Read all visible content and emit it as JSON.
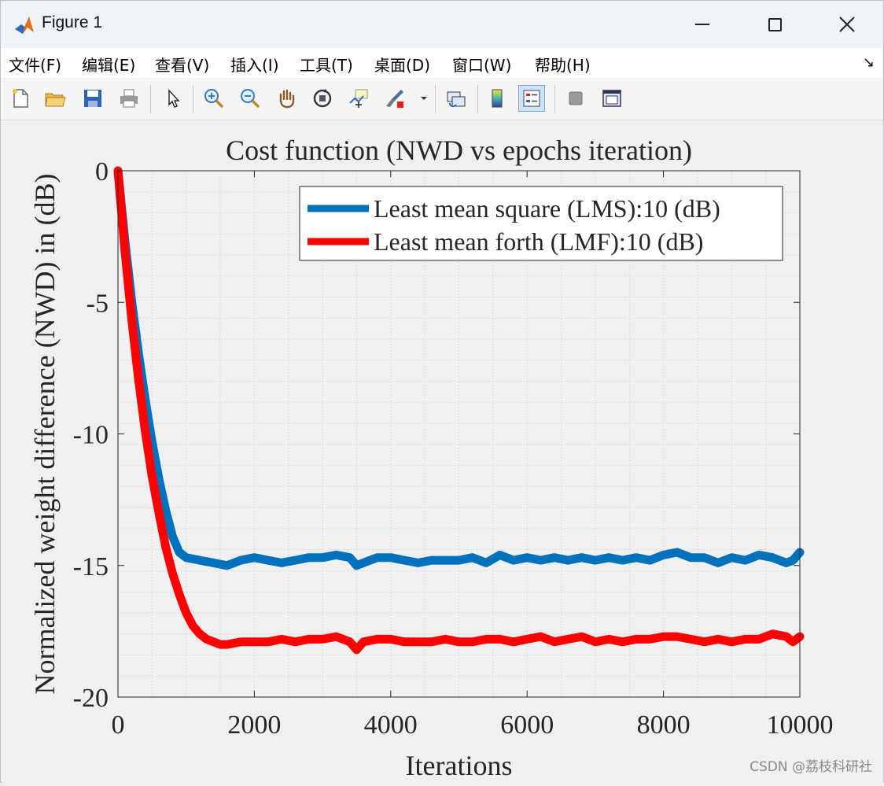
{
  "window": {
    "title": "Figure 1",
    "controls": {
      "minimize": "—",
      "maximize": "☐",
      "close": "✕"
    }
  },
  "menubar": {
    "items": [
      "文件(F)",
      "编辑(E)",
      "查看(V)",
      "插入(I)",
      "工具(T)",
      "桌面(D)",
      "窗口(W)",
      "帮助(H)"
    ],
    "expand_glyph": "↘"
  },
  "toolbar": {
    "icons": [
      "new-figure-icon",
      "open-file-icon",
      "save-icon",
      "print-icon",
      "pointer-icon",
      "zoom-in-icon",
      "zoom-out-icon",
      "pan-icon",
      "rotate-3d-icon",
      "data-cursor-icon",
      "brush-icon",
      "brush-dropdown-icon",
      "link-plot-icon",
      "colorbar-icon",
      "legend-icon",
      "hide-plot-tools-icon",
      "show-plot-tools-icon"
    ]
  },
  "watermark": "CSDN @荔枝科研社",
  "colors": {
    "lms": "#0072bd",
    "lmf": "#ff0000"
  },
  "chart_data": {
    "type": "line",
    "title": "Cost function (NWD vs epochs iteration)",
    "xlabel": "Iterations",
    "ylabel": "Normalized weight difference (NWD) in (dB)",
    "xlim": [
      0,
      10000
    ],
    "ylim": [
      -20,
      0
    ],
    "xticks": [
      0,
      2000,
      4000,
      6000,
      8000,
      10000
    ],
    "yticks": [
      0,
      -5,
      -10,
      -15,
      -20
    ],
    "grid": "minor-dotted",
    "legend_position": "top-right",
    "series": [
      {
        "name": "Least mean square (LMS):10 (dB)",
        "color": "#0072bd",
        "x": [
          0,
          100,
          200,
          300,
          400,
          500,
          600,
          700,
          800,
          900,
          1000,
          1200,
          1400,
          1600,
          1800,
          2000,
          2200,
          2400,
          2600,
          2800,
          3000,
          3200,
          3400,
          3500,
          3600,
          3800,
          4000,
          4200,
          4400,
          4600,
          4800,
          5000,
          5200,
          5400,
          5600,
          5800,
          6000,
          6200,
          6400,
          6600,
          6800,
          7000,
          7200,
          7400,
          7600,
          7800,
          8000,
          8200,
          8400,
          8600,
          8800,
          9000,
          9200,
          9400,
          9600,
          9800,
          9900,
          10000
        ],
        "y": [
          0,
          -2.6,
          -4.9,
          -6.9,
          -8.7,
          -10.3,
          -11.7,
          -12.9,
          -13.9,
          -14.5,
          -14.7,
          -14.8,
          -14.9,
          -15.0,
          -14.8,
          -14.7,
          -14.8,
          -14.9,
          -14.8,
          -14.7,
          -14.7,
          -14.6,
          -14.7,
          -15.0,
          -14.9,
          -14.7,
          -14.7,
          -14.8,
          -14.9,
          -14.8,
          -14.8,
          -14.8,
          -14.7,
          -14.9,
          -14.6,
          -14.8,
          -14.7,
          -14.8,
          -14.7,
          -14.8,
          -14.7,
          -14.8,
          -14.7,
          -14.8,
          -14.7,
          -14.8,
          -14.6,
          -14.5,
          -14.7,
          -14.7,
          -14.9,
          -14.7,
          -14.8,
          -14.6,
          -14.7,
          -14.9,
          -14.8,
          -14.5
        ]
      },
      {
        "name": "Least mean forth (LMF):10 (dB)",
        "color": "#ff0000",
        "x": [
          0,
          100,
          200,
          300,
          400,
          500,
          600,
          700,
          800,
          900,
          1000,
          1100,
          1200,
          1300,
          1400,
          1500,
          1600,
          1800,
          2000,
          2200,
          2400,
          2600,
          2800,
          3000,
          3200,
          3400,
          3500,
          3600,
          3800,
          4000,
          4200,
          4400,
          4600,
          4800,
          5000,
          5200,
          5400,
          5600,
          5800,
          6000,
          6200,
          6400,
          6600,
          6800,
          7000,
          7200,
          7400,
          7600,
          7800,
          8000,
          8200,
          8400,
          8600,
          8800,
          9000,
          9200,
          9400,
          9600,
          9800,
          9900,
          10000
        ],
        "y": [
          0,
          -3.0,
          -5.6,
          -7.9,
          -9.9,
          -11.6,
          -13.0,
          -14.3,
          -15.3,
          -16.1,
          -16.8,
          -17.3,
          -17.6,
          -17.8,
          -17.9,
          -18.0,
          -18.0,
          -17.9,
          -17.9,
          -17.9,
          -17.8,
          -17.9,
          -17.8,
          -17.8,
          -17.7,
          -17.9,
          -18.2,
          -17.9,
          -17.8,
          -17.8,
          -17.9,
          -17.9,
          -17.9,
          -17.8,
          -17.9,
          -17.9,
          -17.8,
          -17.8,
          -17.9,
          -17.8,
          -17.7,
          -17.9,
          -17.8,
          -17.7,
          -17.9,
          -17.8,
          -17.9,
          -17.8,
          -17.8,
          -17.7,
          -17.7,
          -17.8,
          -17.9,
          -17.8,
          -17.9,
          -17.8,
          -17.8,
          -17.6,
          -17.7,
          -17.9,
          -17.7
        ]
      }
    ]
  }
}
